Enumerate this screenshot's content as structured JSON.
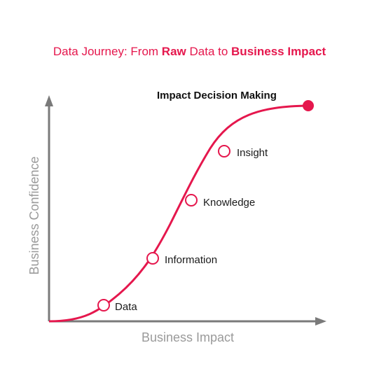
{
  "title": {
    "part1": "Data Journey: From ",
    "bold1": "Raw",
    "part2": " Data to ",
    "bold2": "Business Impact"
  },
  "axes": {
    "x_label": "Business Impact",
    "y_label": "Business Confidence"
  },
  "milestones": [
    {
      "label": "Data"
    },
    {
      "label": "Information"
    },
    {
      "label": "Knowledge"
    },
    {
      "label": "Insight"
    }
  ],
  "endpoint": {
    "label": "Impact Decision Making"
  },
  "colors": {
    "accent": "#e5174d",
    "axis": "#7a7a7a",
    "axis_label": "#9a9a9a",
    "text": "#1a1a1a"
  }
}
